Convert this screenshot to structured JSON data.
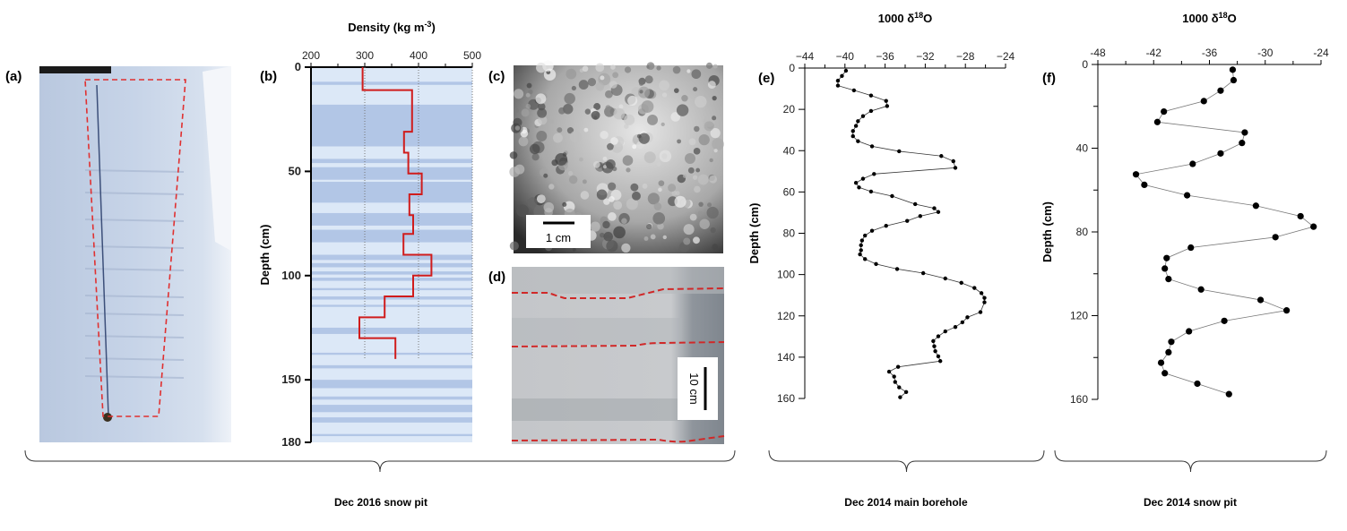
{
  "panels": {
    "a": {
      "label": "(a)"
    },
    "b": {
      "label": "(b)"
    },
    "c": {
      "label": "(c)",
      "scale_bar": "1 cm"
    },
    "d": {
      "label": "(d)",
      "scale_bar": "10 cm"
    },
    "e": {
      "label": "(e)"
    },
    "f": {
      "label": "(f)"
    }
  },
  "groups": [
    {
      "label": "Dec 2016 snow pit"
    },
    {
      "label": "Dec 2014 main borehole"
    },
    {
      "label": "Dec 2014 snow pit"
    }
  ],
  "colors": {
    "density_line": "#d01c1c",
    "outline_dashed": "#e03030",
    "points": "#000000",
    "band_light": "#dce8f7",
    "band_dark": "#8fa9d8"
  },
  "chart_data": [
    {
      "id": "b",
      "type": "line",
      "step": true,
      "title": "Density (kg m-3)",
      "xlabel": "Density (kg m-3)",
      "ylabel": "Depth (cm)",
      "xlim": [
        200,
        500
      ],
      "ylim": [
        0,
        180
      ],
      "y_inverted": true,
      "x_axis_position": "top",
      "xticks": [
        200,
        300,
        400,
        500
      ],
      "yticks": [
        0,
        50,
        100,
        150,
        180
      ],
      "grid_x": [
        300,
        400,
        500
      ],
      "steps": [
        {
          "top": 0,
          "bottom": 11,
          "density": 296
        },
        {
          "top": 11,
          "bottom": 31,
          "density": 388
        },
        {
          "top": 31,
          "bottom": 41,
          "density": 373
        },
        {
          "top": 41,
          "bottom": 51,
          "density": 381
        },
        {
          "top": 51,
          "bottom": 61,
          "density": 406
        },
        {
          "top": 61,
          "bottom": 71,
          "density": 383
        },
        {
          "top": 71,
          "bottom": 80,
          "density": 390
        },
        {
          "top": 80,
          "bottom": 90,
          "density": 372
        },
        {
          "top": 90,
          "bottom": 100,
          "density": 424
        },
        {
          "top": 100,
          "bottom": 110,
          "density": 390
        },
        {
          "top": 110,
          "bottom": 120,
          "density": 337
        },
        {
          "top": 120,
          "bottom": 130,
          "density": 290
        },
        {
          "top": 130,
          "bottom": 140,
          "density": 357
        }
      ]
    },
    {
      "id": "e",
      "type": "line",
      "markers": true,
      "title": "1000 δ18O",
      "ylabel": "Depth (cm)",
      "xlim": [
        -44,
        -24
      ],
      "ylim": [
        0,
        160
      ],
      "y_inverted": true,
      "x_axis_position": "top",
      "xticks": [
        -44,
        -40,
        -36,
        -32,
        -28,
        -24
      ],
      "yticks": [
        0,
        20,
        40,
        60,
        80,
        100,
        120,
        140,
        160
      ],
      "points": [
        [
          -39.9,
          1.3
        ],
        [
          -40.3,
          3.8
        ],
        [
          -40.7,
          6.1
        ],
        [
          -40.7,
          8.5
        ],
        [
          -39.1,
          10.8
        ],
        [
          -37.4,
          13.3
        ],
        [
          -35.9,
          15.9
        ],
        [
          -35.8,
          18.4
        ],
        [
          -37.4,
          20.8
        ],
        [
          -38.2,
          23.3
        ],
        [
          -38.7,
          25.7
        ],
        [
          -38.9,
          28
        ],
        [
          -39.2,
          30.5
        ],
        [
          -39.2,
          33
        ],
        [
          -38.7,
          35.4
        ],
        [
          -37.3,
          37.9
        ],
        [
          -34.6,
          40.3
        ],
        [
          -30.4,
          42.6
        ],
        [
          -29.2,
          45.1
        ],
        [
          -29.0,
          48.3
        ],
        [
          -37.1,
          51.3
        ],
        [
          -38.2,
          53.6
        ],
        [
          -38.9,
          55.6
        ],
        [
          -38.6,
          57.8
        ],
        [
          -37.4,
          59.8
        ],
        [
          -35.3,
          62
        ],
        [
          -33.0,
          65.9
        ],
        [
          -31.1,
          67.9
        ],
        [
          -30.7,
          69.7
        ],
        [
          -32.5,
          71.7
        ],
        [
          -33.8,
          74
        ],
        [
          -35.9,
          76.4
        ],
        [
          -37.3,
          78.8
        ],
        [
          -38.0,
          81.1
        ],
        [
          -38.3,
          83.5
        ],
        [
          -38.4,
          85.8
        ],
        [
          -38.4,
          88.2
        ],
        [
          -38.5,
          90.2
        ],
        [
          -38.0,
          92.5
        ],
        [
          -36.9,
          94.9
        ],
        [
          -34.8,
          97.3
        ],
        [
          -32.2,
          99.3
        ],
        [
          -30.0,
          101.9
        ],
        [
          -28.4,
          104
        ],
        [
          -27.1,
          106.5
        ],
        [
          -26.4,
          109
        ],
        [
          -26.1,
          111.3
        ],
        [
          -26.1,
          113.4
        ],
        [
          -26.5,
          118.2
        ],
        [
          -27.8,
          120.7
        ],
        [
          -28.3,
          123.1
        ],
        [
          -29.0,
          125.4
        ],
        [
          -30.0,
          127.5
        ],
        [
          -30.7,
          129.9
        ],
        [
          -31.2,
          132.2
        ],
        [
          -31.1,
          134.7
        ],
        [
          -31.0,
          137.1
        ],
        [
          -30.7,
          139.6
        ],
        [
          -30.5,
          141.9
        ],
        [
          -34.7,
          144.7
        ],
        [
          -35.6,
          147
        ],
        [
          -35.1,
          149.4
        ],
        [
          -35.0,
          152
        ],
        [
          -34.6,
          154.6
        ],
        [
          -33.9,
          156.9
        ],
        [
          -34.5,
          159.4
        ]
      ]
    },
    {
      "id": "f",
      "type": "line",
      "markers": true,
      "title": "1000 δ18O",
      "ylabel": "Depth (cm)",
      "xlim": [
        -48,
        -24
      ],
      "ylim": [
        0,
        160
      ],
      "y_inverted": true,
      "x_axis_position": "top",
      "xticks": [
        -48,
        -42,
        -36,
        -30,
        -24
      ],
      "yticks": [
        0,
        40,
        80,
        120,
        160
      ],
      "points": [
        [
          -33.5,
          2.5
        ],
        [
          -33.4,
          7.5
        ],
        [
          -34.8,
          12.5
        ],
        [
          -36.6,
          17.5
        ],
        [
          -40.9,
          22.5
        ],
        [
          -41.6,
          27.5
        ],
        [
          -32.2,
          32.5
        ],
        [
          -32.5,
          37.5
        ],
        [
          -34.8,
          42.5
        ],
        [
          -37.8,
          47.5
        ],
        [
          -43.9,
          52.5
        ],
        [
          -43.0,
          57.5
        ],
        [
          -38.4,
          62.5
        ],
        [
          -31.0,
          67.5
        ],
        [
          -26.2,
          72.5
        ],
        [
          -24.8,
          77.5
        ],
        [
          -28.9,
          82.5
        ],
        [
          -38.0,
          87.5
        ],
        [
          -40.6,
          92.5
        ],
        [
          -40.8,
          97.5
        ],
        [
          -40.4,
          102.5
        ],
        [
          -36.9,
          107.5
        ],
        [
          -30.5,
          112.5
        ],
        [
          -27.7,
          117.5
        ],
        [
          -34.4,
          122.5
        ],
        [
          -38.2,
          127.5
        ],
        [
          -40.1,
          132.5
        ],
        [
          -40.4,
          137.5
        ],
        [
          -41.2,
          142.5
        ],
        [
          -40.8,
          147.5
        ],
        [
          -37.3,
          152.5
        ],
        [
          -33.9,
          157.5
        ]
      ]
    }
  ]
}
